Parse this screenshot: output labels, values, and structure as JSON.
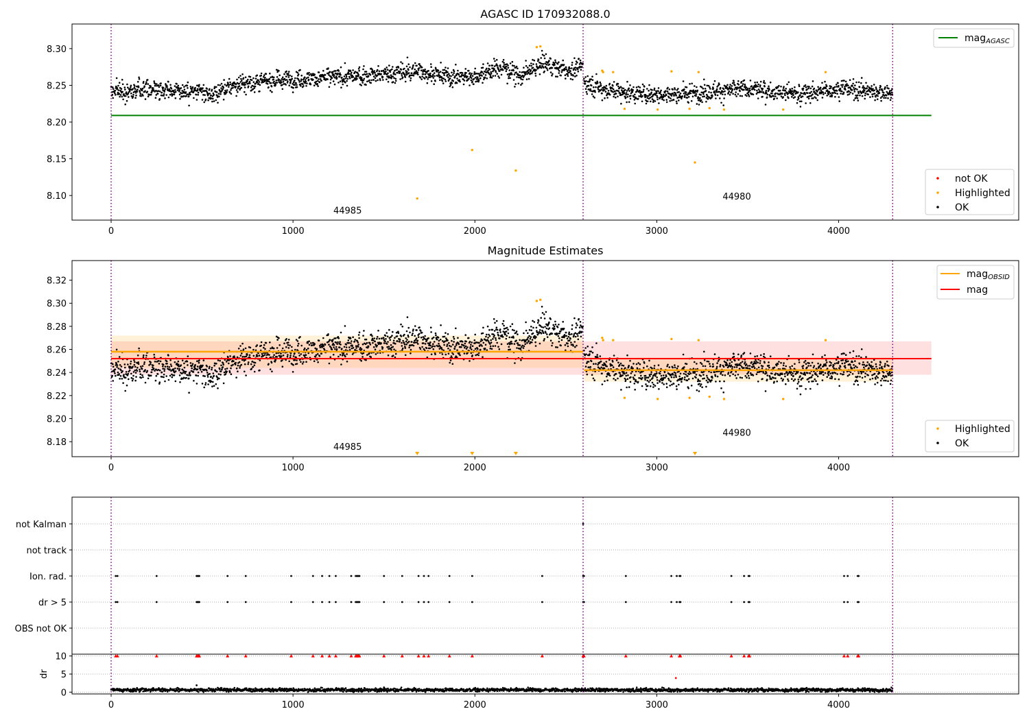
{
  "chart_data": [
    {
      "type": "scatter",
      "title": "AGASC ID 170932088.0",
      "xlabel": "",
      "ylabel": "",
      "xlim": [
        -215,
        4990
      ],
      "ylim": [
        8.0665,
        8.3335
      ],
      "xticks": [
        0,
        1000,
        2000,
        3000,
        4000
      ],
      "xtick_labels": [
        "0",
        "1000",
        "2000",
        "3000",
        "4000"
      ],
      "yticks": [
        8.1,
        8.15,
        8.2,
        8.25,
        8.3
      ],
      "ytick_labels": [
        "8.10",
        "8.15",
        "8.20",
        "8.25",
        "8.30"
      ],
      "obsid_boundaries": [
        0,
        2595,
        4297
      ],
      "obsid_labels": [
        {
          "text": "44985",
          "x": 1300,
          "y": 8.0755
        },
        {
          "text": "44980",
          "x": 3440,
          "y": 8.0945
        }
      ],
      "agasc_mag": {
        "name_main": "mag",
        "name_sub": "AGASC",
        "value": 8.209,
        "x_range": [
          0,
          4510
        ],
        "color": "#008000"
      },
      "ok_segments": [
        {
          "x_start": 0,
          "x_end": 2595,
          "waypoints": [
            [
              0,
              8.242
            ],
            [
              300,
              8.246
            ],
            [
              550,
              8.237
            ],
            [
              700,
              8.252
            ],
            [
              950,
              8.258
            ],
            [
              1250,
              8.261
            ],
            [
              1500,
              8.265
            ],
            [
              1700,
              8.27
            ],
            [
              1850,
              8.262
            ],
            [
              2000,
              8.262
            ],
            [
              2150,
              8.275
            ],
            [
              2250,
              8.262
            ],
            [
              2380,
              8.28
            ],
            [
              2500,
              8.27
            ],
            [
              2595,
              8.275
            ]
          ],
          "spread": 0.008
        },
        {
          "x_start": 2600,
          "x_end": 4297,
          "waypoints": [
            [
              2600,
              8.255
            ],
            [
              2700,
              8.245
            ],
            [
              2900,
              8.238
            ],
            [
              3100,
              8.238
            ],
            [
              3300,
              8.242
            ],
            [
              3500,
              8.245
            ],
            [
              3800,
              8.238
            ],
            [
              4000,
              8.246
            ],
            [
              4297,
              8.24
            ]
          ],
          "spread": 0.008
        }
      ],
      "highlighted_points": [
        [
          1683,
          8.096
        ],
        [
          1985,
          8.162
        ],
        [
          2225,
          8.134
        ],
        [
          3210,
          8.145
        ],
        [
          2340,
          8.302
        ],
        [
          2360,
          8.303
        ],
        [
          2700,
          8.27
        ],
        [
          2705,
          8.268
        ],
        [
          2760,
          8.268
        ],
        [
          2823,
          8.218
        ],
        [
          3005,
          8.217
        ],
        [
          3081,
          8.269
        ],
        [
          3180,
          8.218
        ],
        [
          3230,
          8.268
        ],
        [
          3290,
          8.219
        ],
        [
          3370,
          8.217
        ],
        [
          3695,
          8.217
        ],
        [
          3928,
          8.268
        ]
      ],
      "legend_top": [
        {
          "label_main": "mag",
          "label_sub": "AGASC",
          "color": "#008000",
          "kind": "line"
        }
      ],
      "legend_bottom": [
        {
          "label": "not OK",
          "color": "#ff0000"
        },
        {
          "label": "Highlighted",
          "color": "#ffa500"
        },
        {
          "label": "OK",
          "color": "#000000"
        }
      ]
    },
    {
      "type": "scatter",
      "title": "Magnitude Estimates",
      "xlabel": "",
      "ylabel": "",
      "xlim": [
        -215,
        4990
      ],
      "ylim": [
        8.167,
        8.337
      ],
      "xticks": [
        0,
        1000,
        2000,
        3000,
        4000
      ],
      "xtick_labels": [
        "0",
        "1000",
        "2000",
        "3000",
        "4000"
      ],
      "yticks": [
        8.18,
        8.2,
        8.22,
        8.24,
        8.26,
        8.28,
        8.3,
        8.32
      ],
      "ytick_labels": [
        "8.18",
        "8.20",
        "8.22",
        "8.24",
        "8.26",
        "8.28",
        "8.30",
        "8.32"
      ],
      "obsid_boundaries": [
        0,
        2595,
        4297
      ],
      "obsid_labels": [
        {
          "text": "44985",
          "x": 1300,
          "y": 8.173
        },
        {
          "text": "44980",
          "x": 3440,
          "y": 8.185
        }
      ],
      "mag_line": {
        "name": "mag",
        "value": 8.252,
        "band": [
          8.238,
          8.267
        ],
        "x_range": [
          0,
          4510
        ],
        "color": "#ff0000"
      },
      "obsid_mag": [
        {
          "x_start": 0,
          "x_end": 2595,
          "value": 8.258,
          "band": [
            8.244,
            8.272
          ]
        },
        {
          "x_start": 2600,
          "x_end": 4297,
          "value": 8.242,
          "band": [
            8.232,
            8.253
          ]
        }
      ],
      "below_range_markers": [
        1683,
        1985,
        2225,
        3210
      ],
      "legend_top": [
        {
          "label_main": "mag",
          "label_sub": "OBSID",
          "color": "#ffa500",
          "kind": "line"
        },
        {
          "label_main": "mag",
          "label_sub": "",
          "color": "#ff0000",
          "kind": "line"
        }
      ],
      "legend_bottom": [
        {
          "label": "Highlighted",
          "color": "#ffa500"
        },
        {
          "label": "OK",
          "color": "#000000"
        }
      ]
    },
    {
      "type": "scatter",
      "title": "",
      "xlabel": "",
      "ylabel": "",
      "xlim": [
        -215,
        4990
      ],
      "categories": [
        "not Kalman",
        "not track",
        "Ion. rad.",
        "dr > 5",
        "OBS not OK"
      ],
      "flag_points": {
        "not Kalman": [
          2595
        ],
        "not track": [],
        "Ion. rad.": [
          25,
          35,
          250,
          470,
          475,
          480,
          485,
          640,
          740,
          990,
          1110,
          1160,
          1200,
          1235,
          1320,
          1345,
          1350,
          1355,
          1360,
          1365,
          1500,
          1600,
          1690,
          1720,
          1745,
          1860,
          1985,
          2370,
          2595,
          2600,
          2830,
          3080,
          3110,
          3125,
          3130,
          3410,
          3480,
          3505,
          3510,
          4030,
          4050,
          4105,
          4110
        ],
        "dr > 5": [
          25,
          35,
          250,
          470,
          475,
          480,
          485,
          640,
          740,
          990,
          1110,
          1160,
          1200,
          1235,
          1320,
          1345,
          1350,
          1355,
          1360,
          1365,
          1500,
          1600,
          1690,
          1720,
          1745,
          1860,
          1985,
          2370,
          2595,
          2600,
          2830,
          3080,
          3110,
          3125,
          3130,
          3410,
          3480,
          3505,
          3510,
          4030,
          4050,
          4105,
          4110
        ],
        "OBS not OK": []
      }
    },
    {
      "type": "scatter",
      "title": "",
      "xlabel": "",
      "ylabel": "dr",
      "xlim": [
        -215,
        4990
      ],
      "ylim": [
        -0.5,
        10.5
      ],
      "yticks": [
        0,
        5,
        10
      ],
      "ytick_labels": [
        "0",
        "5",
        "10"
      ],
      "xticks": [
        0,
        1000,
        2000,
        3000,
        4000
      ],
      "xtick_labels": [
        "0",
        "1000",
        "2000",
        "3000",
        "4000"
      ],
      "dr_typical": 0.6,
      "dr_spread": 0.4,
      "dr_spikes": [
        [
          470,
          1.9
        ],
        [
          1500,
          1.3
        ]
      ],
      "dr_capped_at_10": [
        25,
        35,
        250,
        470,
        475,
        480,
        485,
        640,
        740,
        990,
        1110,
        1160,
        1200,
        1235,
        1320,
        1345,
        1350,
        1355,
        1360,
        1365,
        1500,
        1600,
        1690,
        1720,
        1745,
        1860,
        1985,
        2370,
        2595,
        2600,
        2830,
        3080,
        3125,
        3130,
        3410,
        3480,
        3505,
        3510,
        4030,
        4050,
        4105,
        4110
      ],
      "dr_outliers": [
        [
          3105,
          3.9
        ]
      ]
    }
  ]
}
